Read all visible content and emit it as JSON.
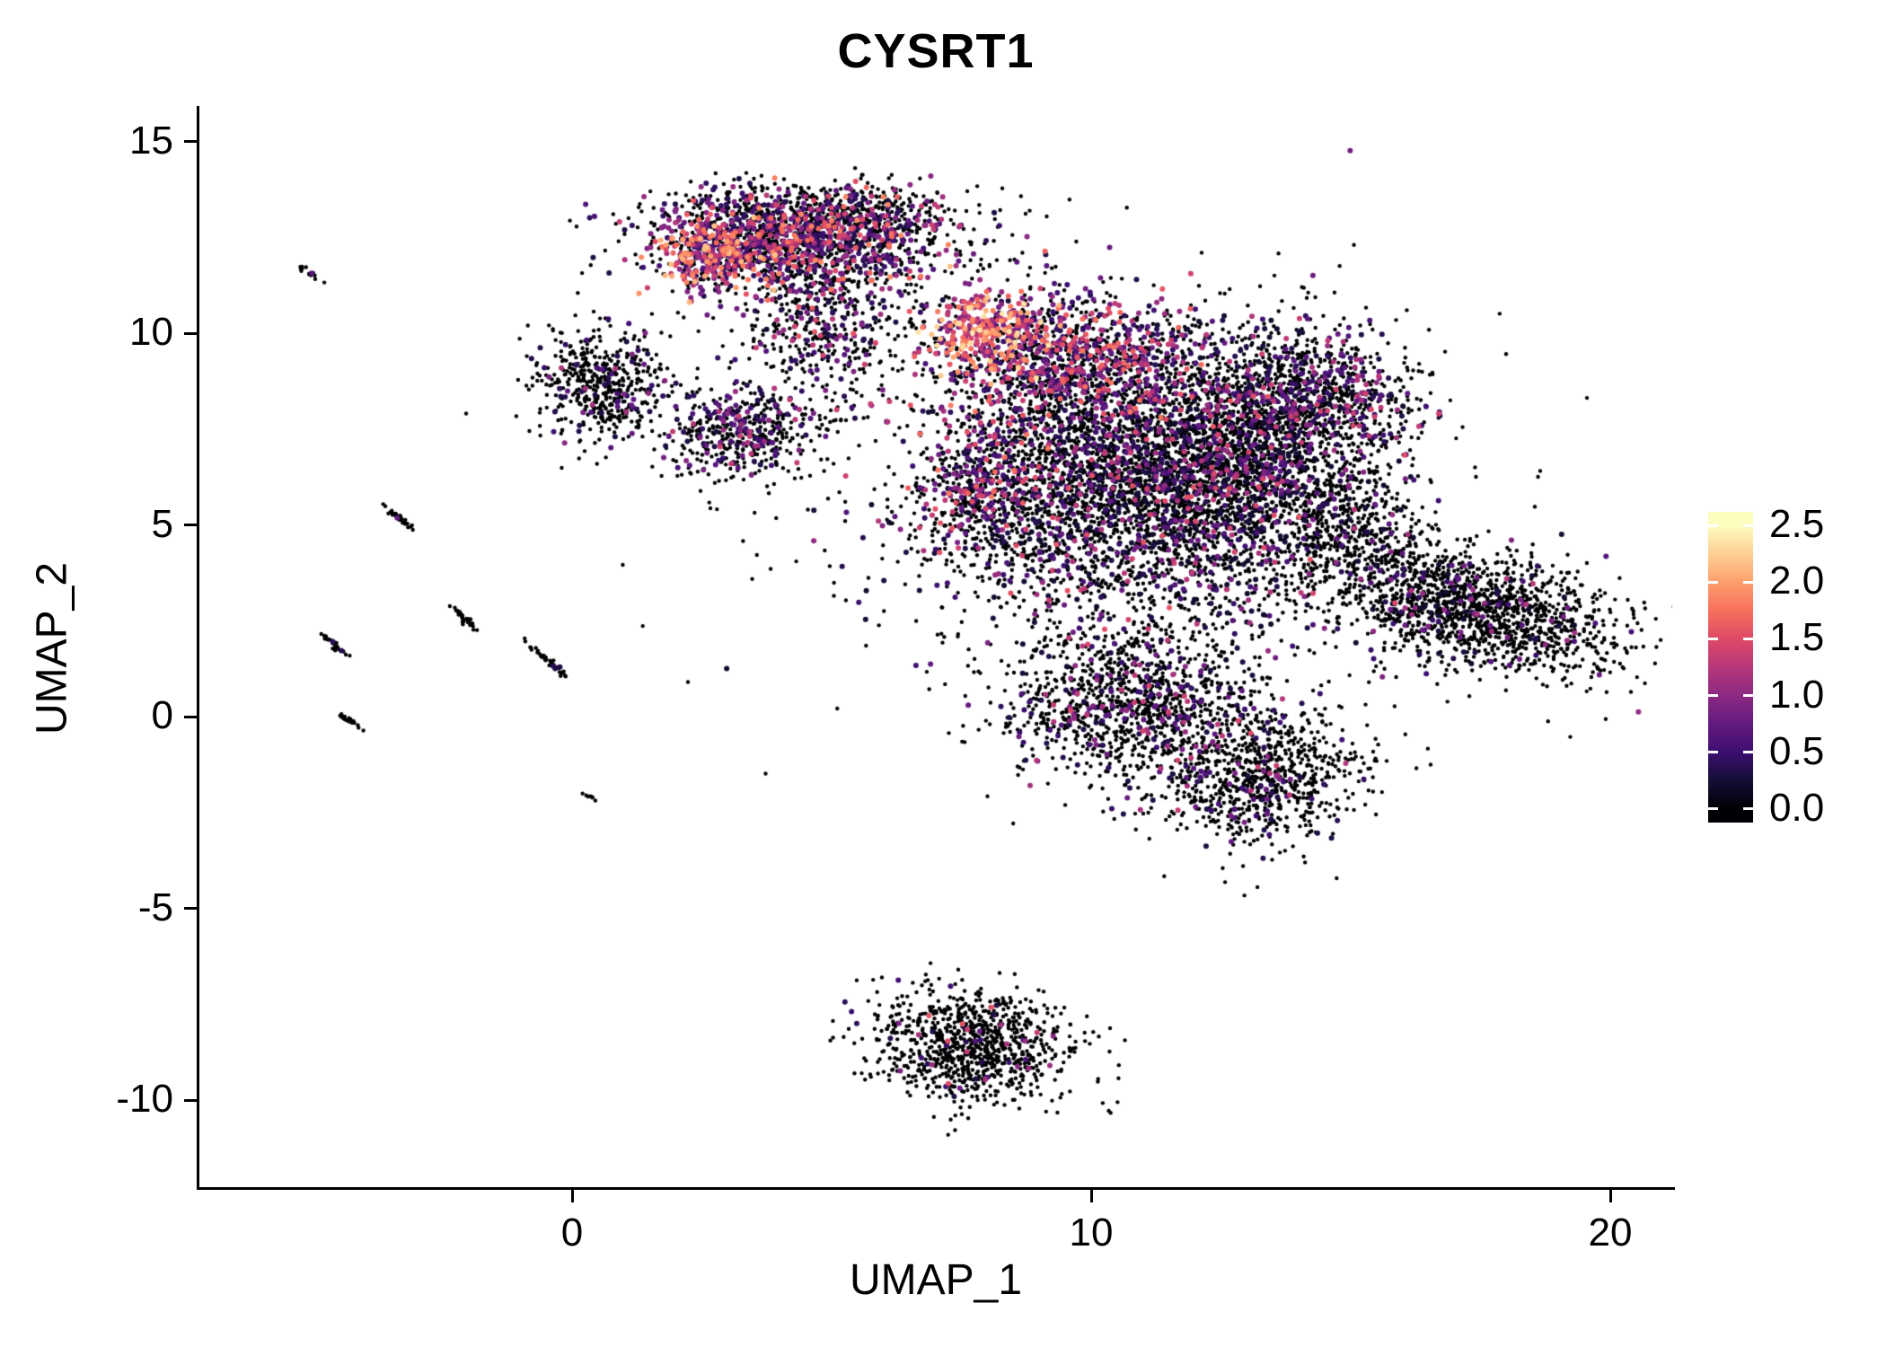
{
  "chart": {
    "title": "CYSRT1",
    "xlabel": "UMAP_1",
    "ylabel": "UMAP_2",
    "x_ticks": [
      0,
      10,
      20
    ],
    "y_ticks": [
      15,
      10,
      5,
      0,
      -5,
      -10
    ],
    "x_range": [
      -7.2,
      21.2
    ],
    "y_range": [
      -12.3,
      15.9
    ]
  },
  "colorbar": {
    "min": 0,
    "max": 2.5,
    "tick_values": [
      2.5,
      2.0,
      1.5,
      1.0,
      0.5,
      0.0
    ],
    "tick_labels": [
      "2.5",
      "2.0",
      "1.5",
      "1.0",
      "0.5",
      "0.0"
    ],
    "colormap": [
      {
        "t": 0.0,
        "color": "#000004"
      },
      {
        "t": 0.1,
        "color": "#140e36"
      },
      {
        "t": 0.2,
        "color": "#3b0f70"
      },
      {
        "t": 0.3,
        "color": "#641a80"
      },
      {
        "t": 0.4,
        "color": "#8c2981"
      },
      {
        "t": 0.5,
        "color": "#b73779"
      },
      {
        "t": 0.6,
        "color": "#de4968"
      },
      {
        "t": 0.7,
        "color": "#f7705c"
      },
      {
        "t": 0.8,
        "color": "#fe9f6d"
      },
      {
        "t": 0.9,
        "color": "#fecf92"
      },
      {
        "t": 1.0,
        "color": "#fcfdbf"
      }
    ]
  },
  "chart_data": {
    "type": "scatter",
    "title": "CYSRT1",
    "xlabel": "UMAP_1",
    "ylabel": "UMAP_2",
    "x_range": [
      -7.2,
      21.2
    ],
    "y_range": [
      -12.3,
      15.9
    ],
    "grid": false,
    "legend_position": "right",
    "color_scale": {
      "palette": "magma",
      "min": 0,
      "max": 2.5,
      "zero_color": "#000004"
    },
    "point_style": {
      "radius_zero": 2.2,
      "radius_expressed": 3.0,
      "seed": 7
    },
    "clusters": [
      {
        "name": "top_main",
        "n": 1500,
        "cx": 4.4,
        "cy": 12.45,
        "sx": 1.35,
        "sy": 0.65,
        "rot": 0,
        "p": 0.45,
        "lo": 0.3,
        "hi": 1.9,
        "pow": 1.6
      },
      {
        "name": "top_left_hot",
        "n": 260,
        "cx": 2.75,
        "cy": 11.95,
        "sx": 0.55,
        "sy": 0.45,
        "rot": 0,
        "p": 0.8,
        "lo": 0.5,
        "hi": 2.2,
        "pow": 1.2
      },
      {
        "name": "top_fringe",
        "n": 300,
        "cx": 4.6,
        "cy": 13.25,
        "sx": 1.5,
        "sy": 0.3,
        "rot": 0,
        "p": 0.15,
        "lo": 0.3,
        "hi": 1.2,
        "pow": 2
      },
      {
        "name": "top_trail",
        "n": 420,
        "cx": 4.9,
        "cy": 10.2,
        "sx": 0.75,
        "sy": 1.1,
        "rot": 0.2,
        "p": 0.3,
        "lo": 0.3,
        "hi": 1.6,
        "pow": 1.6
      },
      {
        "name": "left_blob",
        "n": 520,
        "cx": 0.6,
        "cy": 8.7,
        "sx": 0.6,
        "sy": 0.75,
        "rot": 0.3,
        "p": 0.13,
        "lo": 0.3,
        "hi": 1.2,
        "pow": 2
      },
      {
        "name": "mid_small",
        "n": 480,
        "cx": 3.3,
        "cy": 7.4,
        "sx": 0.75,
        "sy": 0.6,
        "rot": 0.2,
        "p": 0.28,
        "lo": 0.3,
        "hi": 1.4,
        "pow": 1.8
      },
      {
        "name": "junction_hot",
        "n": 300,
        "cx": 8.0,
        "cy": 10.0,
        "sx": 0.6,
        "sy": 0.55,
        "rot": 0,
        "p": 0.9,
        "lo": 0.7,
        "hi": 2.4,
        "pow": 1.1
      },
      {
        "name": "central_top",
        "n": 900,
        "cx": 9.6,
        "cy": 9.4,
        "sx": 1.2,
        "sy": 0.8,
        "rot": 0,
        "p": 0.5,
        "lo": 0.35,
        "hi": 1.8,
        "pow": 1.6
      },
      {
        "name": "central_main",
        "n": 4200,
        "cx": 10.9,
        "cy": 6.2,
        "sx": 2.0,
        "sy": 1.8,
        "rot": 0,
        "p": 0.26,
        "lo": 0.2,
        "hi": 1.6,
        "pow": 2.2
      },
      {
        "name": "central_left_pink",
        "n": 320,
        "cx": 7.7,
        "cy": 5.9,
        "sx": 0.55,
        "sy": 0.9,
        "rot": 0,
        "p": 0.5,
        "lo": 0.4,
        "hi": 1.9,
        "pow": 1.4
      },
      {
        "name": "central_east",
        "n": 1100,
        "cx": 13.0,
        "cy": 6.9,
        "sx": 1.1,
        "sy": 1.4,
        "rot": 0,
        "p": 0.22,
        "lo": 0.2,
        "hi": 1.5,
        "pow": 2.2
      },
      {
        "name": "right_arm",
        "n": 650,
        "cx": 14.4,
        "cy": 8.4,
        "sx": 0.95,
        "sy": 0.8,
        "rot": -0.3,
        "p": 0.3,
        "lo": 0.3,
        "hi": 1.5,
        "pow": 1.8
      },
      {
        "name": "neck",
        "n": 420,
        "cx": 14.9,
        "cy": 4.9,
        "sx": 0.75,
        "sy": 1.0,
        "rot": 0.3,
        "p": 0.12,
        "lo": 0.2,
        "hi": 1.2,
        "pow": 2
      },
      {
        "name": "right_wing",
        "n": 1500,
        "cx": 17.4,
        "cy": 2.8,
        "sx": 1.45,
        "sy": 0.75,
        "rot": -0.32,
        "p": 0.09,
        "lo": 0.2,
        "hi": 1.3,
        "pow": 2
      },
      {
        "name": "lower_mid",
        "n": 1150,
        "cx": 10.8,
        "cy": 0.3,
        "sx": 1.25,
        "sy": 1.0,
        "rot": 0.1,
        "p": 0.17,
        "lo": 0.3,
        "hi": 1.5,
        "pow": 2
      },
      {
        "name": "lower_right",
        "n": 850,
        "cx": 13.3,
        "cy": -1.6,
        "sx": 1.0,
        "sy": 0.85,
        "rot": 0.45,
        "p": 0.1,
        "lo": 0.3,
        "hi": 1.4,
        "pow": 2
      },
      {
        "name": "bottom_blob",
        "n": 950,
        "cx": 7.7,
        "cy": -8.6,
        "sx": 0.95,
        "sy": 0.75,
        "rot": -0.25,
        "p": 0.05,
        "lo": 0.3,
        "hi": 1.6,
        "pow": 1.8
      },
      {
        "name": "streak_1",
        "n": 14,
        "cx": -5.0,
        "cy": 11.5,
        "sx": 0.18,
        "sy": 0.035,
        "rot": -0.85,
        "p": 0.02,
        "lo": 0.3,
        "hi": 0.8,
        "pow": 2
      },
      {
        "name": "streak_2",
        "n": 34,
        "cx": -3.3,
        "cy": 5.15,
        "sx": 0.25,
        "sy": 0.035,
        "rot": -0.85,
        "p": 0.02,
        "lo": 0.3,
        "hi": 0.8,
        "pow": 2
      },
      {
        "name": "streak_3",
        "n": 30,
        "cx": -2.1,
        "cy": 2.6,
        "sx": 0.22,
        "sy": 0.035,
        "rot": -0.85,
        "p": 0.02,
        "lo": 0.3,
        "hi": 0.8,
        "pow": 2
      },
      {
        "name": "streak_4",
        "n": 26,
        "cx": -4.55,
        "cy": 1.85,
        "sx": 0.2,
        "sy": 0.035,
        "rot": -0.85,
        "p": 0.02,
        "lo": 0.3,
        "hi": 0.8,
        "pow": 2
      },
      {
        "name": "streak_5",
        "n": 44,
        "cx": -0.55,
        "cy": 1.55,
        "sx": 0.28,
        "sy": 0.04,
        "rot": -0.85,
        "p": 0.02,
        "lo": 0.3,
        "hi": 0.8,
        "pow": 2
      },
      {
        "name": "streak_6",
        "n": 22,
        "cx": -4.3,
        "cy": -0.1,
        "sx": 0.17,
        "sy": 0.035,
        "rot": -0.85,
        "p": 0.02,
        "lo": 0.3,
        "hi": 0.8,
        "pow": 2
      },
      {
        "name": "streak_7",
        "n": 8,
        "cx": 0.35,
        "cy": -2.1,
        "sx": 0.08,
        "sy": 0.03,
        "rot": -0.85,
        "p": 0.02,
        "lo": 0.3,
        "hi": 0.8,
        "pow": 2
      },
      {
        "name": "noise_central",
        "n": 350,
        "cx": 10.5,
        "cy": 5.5,
        "sx": 3.4,
        "sy": 2.9,
        "rot": 0,
        "p": 0.15,
        "lo": 0.2,
        "hi": 1.2,
        "pow": 2
      },
      {
        "name": "noise_top",
        "n": 160,
        "cx": 5.5,
        "cy": 11.0,
        "sx": 2.0,
        "sy": 1.4,
        "rot": 0,
        "p": 0.2,
        "lo": 0.3,
        "hi": 1.4,
        "pow": 1.8
      }
    ]
  }
}
